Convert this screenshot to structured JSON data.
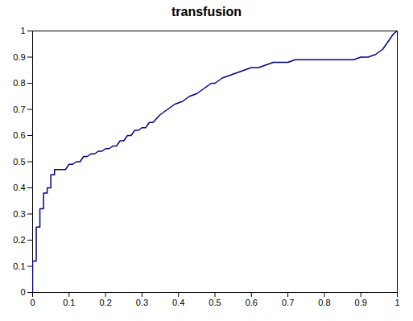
{
  "chart_data": {
    "type": "line",
    "title": "transfusion",
    "x": [
      0.0,
      0.0,
      0.0,
      0.01,
      0.01,
      0.02,
      0.02,
      0.03,
      0.03,
      0.04,
      0.04,
      0.05,
      0.05,
      0.06,
      0.06,
      0.07,
      0.08,
      0.09,
      0.1,
      0.11,
      0.12,
      0.13,
      0.14,
      0.15,
      0.16,
      0.17,
      0.18,
      0.19,
      0.2,
      0.21,
      0.22,
      0.23,
      0.24,
      0.25,
      0.26,
      0.27,
      0.28,
      0.29,
      0.3,
      0.31,
      0.32,
      0.33,
      0.35,
      0.37,
      0.39,
      0.41,
      0.43,
      0.45,
      0.47,
      0.49,
      0.5,
      0.52,
      0.54,
      0.56,
      0.58,
      0.6,
      0.62,
      0.64,
      0.66,
      0.68,
      0.7,
      0.72,
      0.74,
      0.76,
      0.78,
      0.8,
      0.82,
      0.84,
      0.86,
      0.88,
      0.9,
      0.92,
      0.94,
      0.96,
      0.97,
      0.98,
      0.99,
      1.0
    ],
    "values": [
      0.0,
      0.05,
      0.12,
      0.12,
      0.25,
      0.25,
      0.32,
      0.32,
      0.38,
      0.38,
      0.4,
      0.4,
      0.45,
      0.45,
      0.47,
      0.47,
      0.47,
      0.47,
      0.49,
      0.49,
      0.5,
      0.5,
      0.52,
      0.52,
      0.53,
      0.53,
      0.54,
      0.54,
      0.55,
      0.55,
      0.56,
      0.56,
      0.58,
      0.58,
      0.6,
      0.6,
      0.62,
      0.62,
      0.63,
      0.63,
      0.65,
      0.65,
      0.68,
      0.7,
      0.72,
      0.73,
      0.75,
      0.76,
      0.78,
      0.8,
      0.8,
      0.82,
      0.83,
      0.84,
      0.85,
      0.86,
      0.86,
      0.87,
      0.88,
      0.88,
      0.88,
      0.89,
      0.89,
      0.89,
      0.89,
      0.89,
      0.89,
      0.89,
      0.89,
      0.89,
      0.9,
      0.9,
      0.91,
      0.93,
      0.95,
      0.97,
      0.99,
      1.0
    ],
    "color": "#00008B",
    "xlim": [
      0,
      1
    ],
    "ylim": [
      0,
      1
    ],
    "xticks": [
      0,
      0.1,
      0.2,
      0.3,
      0.4,
      0.5,
      0.6,
      0.7,
      0.8,
      0.9,
      1
    ],
    "yticks": [
      0,
      0.1,
      0.2,
      0.3,
      0.4,
      0.5,
      0.6,
      0.7,
      0.8,
      0.9,
      1
    ],
    "grid": false
  }
}
